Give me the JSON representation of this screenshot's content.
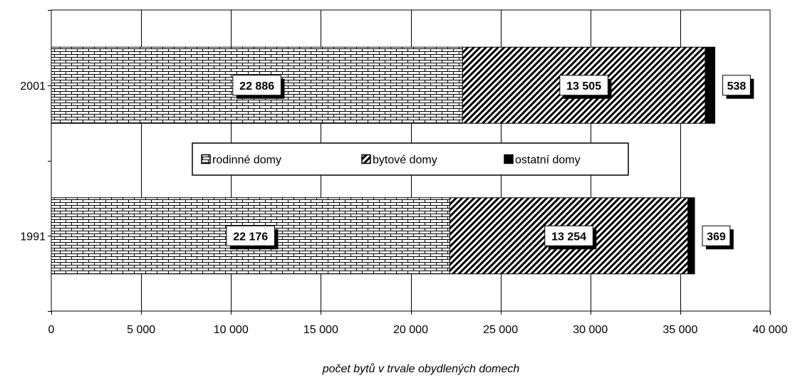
{
  "chart_data": {
    "type": "bar",
    "orientation": "horizontal",
    "stacked": true,
    "categories": [
      "2001",
      "1991"
    ],
    "series": [
      {
        "name": "rodinné domy",
        "values": [
          22886,
          22176
        ],
        "labels": [
          "22 886",
          "22 176"
        ],
        "pattern": "brick"
      },
      {
        "name": "bytové domy",
        "values": [
          13505,
          13254
        ],
        "labels": [
          "13 505",
          "13 254"
        ],
        "pattern": "diagonal"
      },
      {
        "name": "ostatní domy",
        "values": [
          538,
          369
        ],
        "labels": [
          "538",
          "369"
        ],
        "pattern": "solid"
      }
    ],
    "xlabel": "počet bytů v trvale obydlených domech",
    "ylabel": "",
    "xlim": [
      0,
      40000
    ],
    "x_ticks": [
      0,
      5000,
      10000,
      15000,
      20000,
      25000,
      30000,
      35000,
      40000
    ],
    "x_tick_labels": [
      "0",
      "5 000",
      "10 000",
      "15 000",
      "20 000",
      "25 000",
      "30 000",
      "35 000",
      "40 000"
    ],
    "grid": "vertical",
    "legend": "center"
  }
}
